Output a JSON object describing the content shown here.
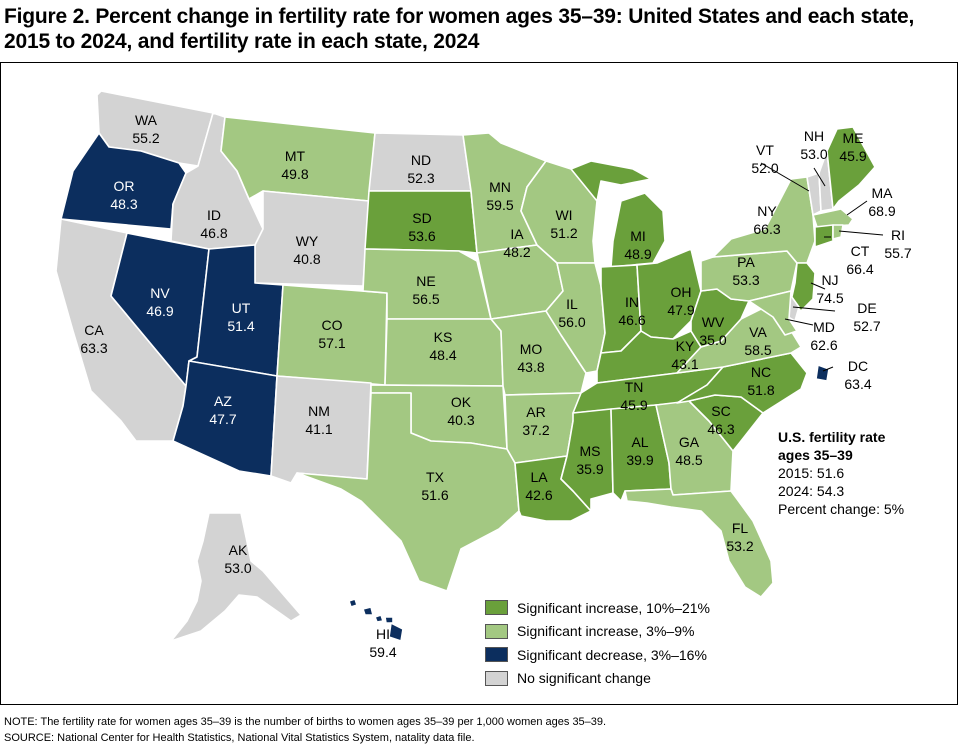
{
  "title": "Figure 2. Percent change in fertility rate for women ages 35–39: United States and each state, 2015 to 2024, and fertility rate in each state, 2024",
  "colors": {
    "sig_increase_high": "#6aa03b",
    "sig_increase_low": "#a3c882",
    "sig_decrease": "#0c2e5e",
    "no_change": "#d3d3d3",
    "border": "#ffffff"
  },
  "legend": [
    {
      "key": "sig_increase_high",
      "label": "Significant increase, 10%–21%"
    },
    {
      "key": "sig_increase_low",
      "label": "Significant increase, 3%–9%"
    },
    {
      "key": "sig_decrease",
      "label": "Significant decrease, 3%–16%"
    },
    {
      "key": "no_change",
      "label": "No significant change"
    }
  ],
  "us_summary": {
    "heading_1": "U.S. fertility rate",
    "heading_2": "ages 35–39",
    "line_2015": "2015: 51.6",
    "line_2024": "2024: 54.3",
    "line_change": "Percent change: 5%"
  },
  "states": {
    "WA": {
      "abbr": "WA",
      "rate": "55.2",
      "cat": "no_change"
    },
    "OR": {
      "abbr": "OR",
      "rate": "48.3",
      "cat": "sig_decrease"
    },
    "CA": {
      "abbr": "CA",
      "rate": "63.3",
      "cat": "no_change"
    },
    "ID": {
      "abbr": "ID",
      "rate": "46.8",
      "cat": "no_change"
    },
    "NV": {
      "abbr": "NV",
      "rate": "46.9",
      "cat": "sig_decrease"
    },
    "MT": {
      "abbr": "MT",
      "rate": "49.8",
      "cat": "sig_increase_low"
    },
    "WY": {
      "abbr": "WY",
      "rate": "40.8",
      "cat": "no_change"
    },
    "UT": {
      "abbr": "UT",
      "rate": "51.4",
      "cat": "sig_decrease"
    },
    "AZ": {
      "abbr": "AZ",
      "rate": "47.7",
      "cat": "sig_decrease"
    },
    "CO": {
      "abbr": "CO",
      "rate": "57.1",
      "cat": "sig_increase_low"
    },
    "NM": {
      "abbr": "NM",
      "rate": "41.1",
      "cat": "no_change"
    },
    "ND": {
      "abbr": "ND",
      "rate": "52.3",
      "cat": "no_change"
    },
    "SD": {
      "abbr": "SD",
      "rate": "53.6",
      "cat": "sig_increase_high"
    },
    "NE": {
      "abbr": "NE",
      "rate": "56.5",
      "cat": "sig_increase_low"
    },
    "KS": {
      "abbr": "KS",
      "rate": "48.4",
      "cat": "sig_increase_low"
    },
    "OK": {
      "abbr": "OK",
      "rate": "40.3",
      "cat": "sig_increase_low"
    },
    "TX": {
      "abbr": "TX",
      "rate": "51.6",
      "cat": "sig_increase_low"
    },
    "MN": {
      "abbr": "MN",
      "rate": "59.5",
      "cat": "sig_increase_low"
    },
    "IA": {
      "abbr": "IA",
      "rate": "48.2",
      "cat": "sig_increase_low"
    },
    "MO": {
      "abbr": "MO",
      "rate": "43.8",
      "cat": "sig_increase_low"
    },
    "AR": {
      "abbr": "AR",
      "rate": "37.2",
      "cat": "sig_increase_low"
    },
    "LA": {
      "abbr": "LA",
      "rate": "42.6",
      "cat": "sig_increase_high"
    },
    "WI": {
      "abbr": "WI",
      "rate": "51.2",
      "cat": "sig_increase_low"
    },
    "IL": {
      "abbr": "IL",
      "rate": "56.0",
      "cat": "sig_increase_low"
    },
    "MI": {
      "abbr": "MI",
      "rate": "48.9",
      "cat": "sig_increase_high"
    },
    "IN": {
      "abbr": "IN",
      "rate": "46.6",
      "cat": "sig_increase_high"
    },
    "OH": {
      "abbr": "OH",
      "rate": "47.9",
      "cat": "sig_increase_high"
    },
    "KY": {
      "abbr": "KY",
      "rate": "43.1",
      "cat": "sig_increase_high"
    },
    "TN": {
      "abbr": "TN",
      "rate": "45.9",
      "cat": "sig_increase_high"
    },
    "MS": {
      "abbr": "MS",
      "rate": "35.9",
      "cat": "sig_increase_high"
    },
    "AL": {
      "abbr": "AL",
      "rate": "39.9",
      "cat": "sig_increase_high"
    },
    "GA": {
      "abbr": "GA",
      "rate": "48.5",
      "cat": "sig_increase_low"
    },
    "FL": {
      "abbr": "FL",
      "rate": "53.2",
      "cat": "sig_increase_low"
    },
    "SC": {
      "abbr": "SC",
      "rate": "46.3",
      "cat": "sig_increase_high"
    },
    "NC": {
      "abbr": "NC",
      "rate": "51.8",
      "cat": "sig_increase_high"
    },
    "VA": {
      "abbr": "VA",
      "rate": "58.5",
      "cat": "sig_increase_low"
    },
    "WV": {
      "abbr": "WV",
      "rate": "35.0",
      "cat": "sig_increase_high"
    },
    "PA": {
      "abbr": "PA",
      "rate": "53.3",
      "cat": "sig_increase_low"
    },
    "NY": {
      "abbr": "NY",
      "rate": "66.3",
      "cat": "sig_increase_low"
    },
    "VT": {
      "abbr": "VT",
      "rate": "52.0",
      "cat": "no_change"
    },
    "NH": {
      "abbr": "NH",
      "rate": "53.0",
      "cat": "no_change"
    },
    "ME": {
      "abbr": "ME",
      "rate": "45.9",
      "cat": "sig_increase_high"
    },
    "MA": {
      "abbr": "MA",
      "rate": "68.9",
      "cat": "sig_increase_low"
    },
    "RI": {
      "abbr": "RI",
      "rate": "55.7",
      "cat": "sig_increase_low"
    },
    "CT": {
      "abbr": "CT",
      "rate": "66.4",
      "cat": "sig_increase_high"
    },
    "NJ": {
      "abbr": "NJ",
      "rate": "74.5",
      "cat": "sig_increase_high"
    },
    "DE": {
      "abbr": "DE",
      "rate": "52.7",
      "cat": "no_change"
    },
    "MD": {
      "abbr": "MD",
      "rate": "62.6",
      "cat": "sig_increase_low"
    },
    "DC": {
      "abbr": "DC",
      "rate": "63.4",
      "cat": "sig_decrease"
    },
    "AK": {
      "abbr": "AK",
      "rate": "53.0",
      "cat": "no_change"
    },
    "HI": {
      "abbr": "HI",
      "rate": "59.4",
      "cat": "sig_decrease"
    }
  },
  "footnotes": {
    "note": "NOTE: The fertility rate for women ages 35–39 is the number of births to women ages 35–39 per 1,000 women ages 35–39.",
    "source": "SOURCE: National Center for Health Statistics, National Vital Statistics System, natality data file."
  }
}
